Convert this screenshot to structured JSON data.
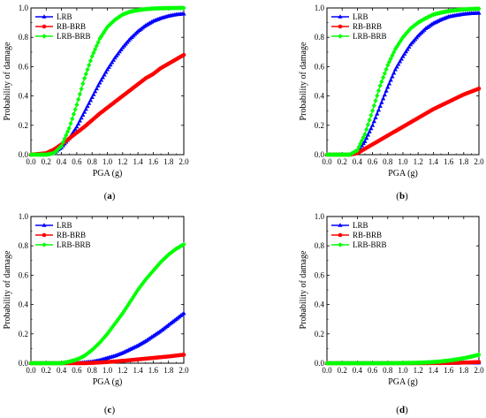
{
  "colors": {
    "LRB": "#0000ff",
    "RB-BRB": "#ff0000",
    "LRB-BRB": "#00ff00"
  },
  "chart_data": [
    {
      "type": "line",
      "panel": "(a)",
      "panel_letter": "a",
      "xlabel": "PGA (g)",
      "ylabel": "Probability of damage",
      "xlim": [
        0.0,
        2.0
      ],
      "ylim": [
        0.0,
        1.0
      ],
      "xticks": [
        "0.0",
        "0.2",
        "0.4",
        "0.6",
        "0.8",
        "1.0",
        "1.2",
        "1.4",
        "1.6",
        "1.8",
        "2.0"
      ],
      "yticks": [
        "0.0",
        "0.2",
        "0.4",
        "0.6",
        "0.8",
        "1.0"
      ],
      "legend": "top-left",
      "grid": false,
      "x": [
        0.0,
        0.2,
        0.3,
        0.4,
        0.5,
        0.6,
        0.7,
        0.8,
        0.9,
        1.0,
        1.1,
        1.2,
        1.3,
        1.4,
        1.5,
        1.6,
        1.7,
        1.8,
        1.9,
        2.0
      ],
      "series": [
        {
          "name": "LRB",
          "marker": "triangle",
          "values": [
            0.0,
            0.0,
            0.01,
            0.05,
            0.11,
            0.19,
            0.29,
            0.39,
            0.49,
            0.58,
            0.66,
            0.73,
            0.79,
            0.84,
            0.88,
            0.91,
            0.93,
            0.945,
            0.955,
            0.96
          ]
        },
        {
          "name": "RB-BRB",
          "marker": "circle",
          "values": [
            0.0,
            0.01,
            0.035,
            0.07,
            0.11,
            0.15,
            0.19,
            0.235,
            0.28,
            0.32,
            0.36,
            0.4,
            0.44,
            0.48,
            0.52,
            0.55,
            0.59,
            0.62,
            0.65,
            0.68
          ]
        },
        {
          "name": "LRB-BRB",
          "marker": "diamond",
          "values": [
            0.0,
            0.0,
            0.01,
            0.06,
            0.18,
            0.34,
            0.52,
            0.67,
            0.79,
            0.87,
            0.92,
            0.955,
            0.975,
            0.985,
            0.992,
            0.996,
            0.998,
            0.999,
            1.0,
            1.0
          ]
        }
      ]
    },
    {
      "type": "line",
      "panel": "(b)",
      "panel_letter": "b",
      "xlabel": "PGA (g)",
      "ylabel": "Probability of damage",
      "xlim": [
        0.0,
        2.0
      ],
      "ylim": [
        0.0,
        1.0
      ],
      "xticks": [
        "0.0",
        "0.2",
        "0.4",
        "0.6",
        "0.8",
        "1.0",
        "1.2",
        "1.4",
        "1.6",
        "1.8",
        "2.0"
      ],
      "yticks": [
        "0.0",
        "0.2",
        "0.4",
        "0.6",
        "0.8",
        "1.0"
      ],
      "legend": "top-left",
      "grid": false,
      "x": [
        0.0,
        0.2,
        0.3,
        0.4,
        0.5,
        0.6,
        0.7,
        0.8,
        0.9,
        1.0,
        1.1,
        1.2,
        1.3,
        1.4,
        1.5,
        1.6,
        1.7,
        1.8,
        1.9,
        2.0
      ],
      "series": [
        {
          "name": "LRB",
          "marker": "triangle",
          "values": [
            0.0,
            0.0,
            0.0,
            0.02,
            0.09,
            0.2,
            0.33,
            0.46,
            0.58,
            0.67,
            0.75,
            0.81,
            0.86,
            0.895,
            0.92,
            0.94,
            0.95,
            0.958,
            0.963,
            0.965
          ]
        },
        {
          "name": "RB-BRB",
          "marker": "circle",
          "values": [
            0.0,
            0.0,
            0.0,
            0.01,
            0.04,
            0.07,
            0.1,
            0.13,
            0.16,
            0.19,
            0.22,
            0.25,
            0.28,
            0.31,
            0.335,
            0.36,
            0.385,
            0.41,
            0.43,
            0.45
          ]
        },
        {
          "name": "LRB-BRB",
          "marker": "diamond",
          "values": [
            0.0,
            0.0,
            0.0,
            0.03,
            0.14,
            0.3,
            0.47,
            0.61,
            0.72,
            0.8,
            0.86,
            0.9,
            0.93,
            0.955,
            0.968,
            0.978,
            0.985,
            0.99,
            0.993,
            0.995
          ]
        }
      ]
    },
    {
      "type": "line",
      "panel": "(c)",
      "panel_letter": "c",
      "xlabel": "PGA (g)",
      "ylabel": "Probability of damage",
      "xlim": [
        0.0,
        2.0
      ],
      "ylim": [
        0.0,
        1.0
      ],
      "xticks": [
        "0.0",
        "0.2",
        "0.4",
        "0.6",
        "0.8",
        "1.0",
        "1.2",
        "1.4",
        "1.6",
        "1.8",
        "2.0"
      ],
      "yticks": [
        "0.0",
        "0.2",
        "0.4",
        "0.6",
        "0.8",
        "1.0"
      ],
      "legend": "top-left",
      "grid": false,
      "x": [
        0.0,
        0.2,
        0.4,
        0.5,
        0.6,
        0.7,
        0.8,
        0.9,
        1.0,
        1.1,
        1.2,
        1.3,
        1.4,
        1.5,
        1.6,
        1.7,
        1.8,
        1.9,
        2.0
      ],
      "series": [
        {
          "name": "LRB",
          "marker": "triangle",
          "values": [
            0.0,
            0.0,
            0.0,
            0.0,
            0.0,
            0.005,
            0.01,
            0.02,
            0.035,
            0.05,
            0.07,
            0.095,
            0.12,
            0.15,
            0.185,
            0.22,
            0.26,
            0.3,
            0.34
          ]
        },
        {
          "name": "RB-BRB",
          "marker": "circle",
          "values": [
            0.0,
            0.0,
            0.0,
            0.0,
            0.0,
            0.0,
            0.002,
            0.005,
            0.008,
            0.012,
            0.016,
            0.021,
            0.026,
            0.031,
            0.036,
            0.041,
            0.046,
            0.052,
            0.058
          ]
        },
        {
          "name": "LRB-BRB",
          "marker": "diamond",
          "values": [
            0.0,
            0.0,
            0.0,
            0.01,
            0.025,
            0.05,
            0.09,
            0.14,
            0.2,
            0.27,
            0.34,
            0.42,
            0.5,
            0.57,
            0.63,
            0.69,
            0.74,
            0.78,
            0.81
          ]
        }
      ]
    },
    {
      "type": "line",
      "panel": "(d)",
      "panel_letter": "d",
      "xlabel": "PGA (g)",
      "ylabel": "Probability of damage",
      "xlim": [
        0.0,
        2.0
      ],
      "ylim": [
        0.0,
        1.0
      ],
      "xticks": [
        "0.0",
        "0.2",
        "0.4",
        "0.6",
        "0.8",
        "1.0",
        "1.2",
        "1.4",
        "1.6",
        "1.8",
        "2.0"
      ],
      "yticks": [
        "0.0",
        "0.2",
        "0.4",
        "0.6",
        "0.8",
        "1.0"
      ],
      "legend": "top-left",
      "grid": false,
      "x": [
        0.0,
        0.2,
        0.4,
        0.6,
        0.8,
        1.0,
        1.1,
        1.2,
        1.3,
        1.4,
        1.5,
        1.6,
        1.7,
        1.8,
        1.9,
        2.0
      ],
      "series": [
        {
          "name": "LRB",
          "marker": "triangle",
          "values": [
            0.0,
            0.0,
            0.0,
            0.0,
            0.0,
            0.0,
            0.0,
            0.0,
            0.0,
            0.0,
            0.0,
            0.001,
            0.001,
            0.002,
            0.002,
            0.003
          ]
        },
        {
          "name": "RB-BRB",
          "marker": "circle",
          "values": [
            0.0,
            0.0,
            0.0,
            0.0,
            0.0,
            0.0,
            0.0,
            0.0,
            0.0,
            0.001,
            0.001,
            0.002,
            0.003,
            0.004,
            0.006,
            0.008
          ]
        },
        {
          "name": "LRB-BRB",
          "marker": "diamond",
          "values": [
            0.0,
            0.0,
            0.0,
            0.0,
            0.0,
            0.001,
            0.002,
            0.003,
            0.005,
            0.008,
            0.012,
            0.018,
            0.025,
            0.034,
            0.045,
            0.058
          ]
        }
      ]
    }
  ]
}
